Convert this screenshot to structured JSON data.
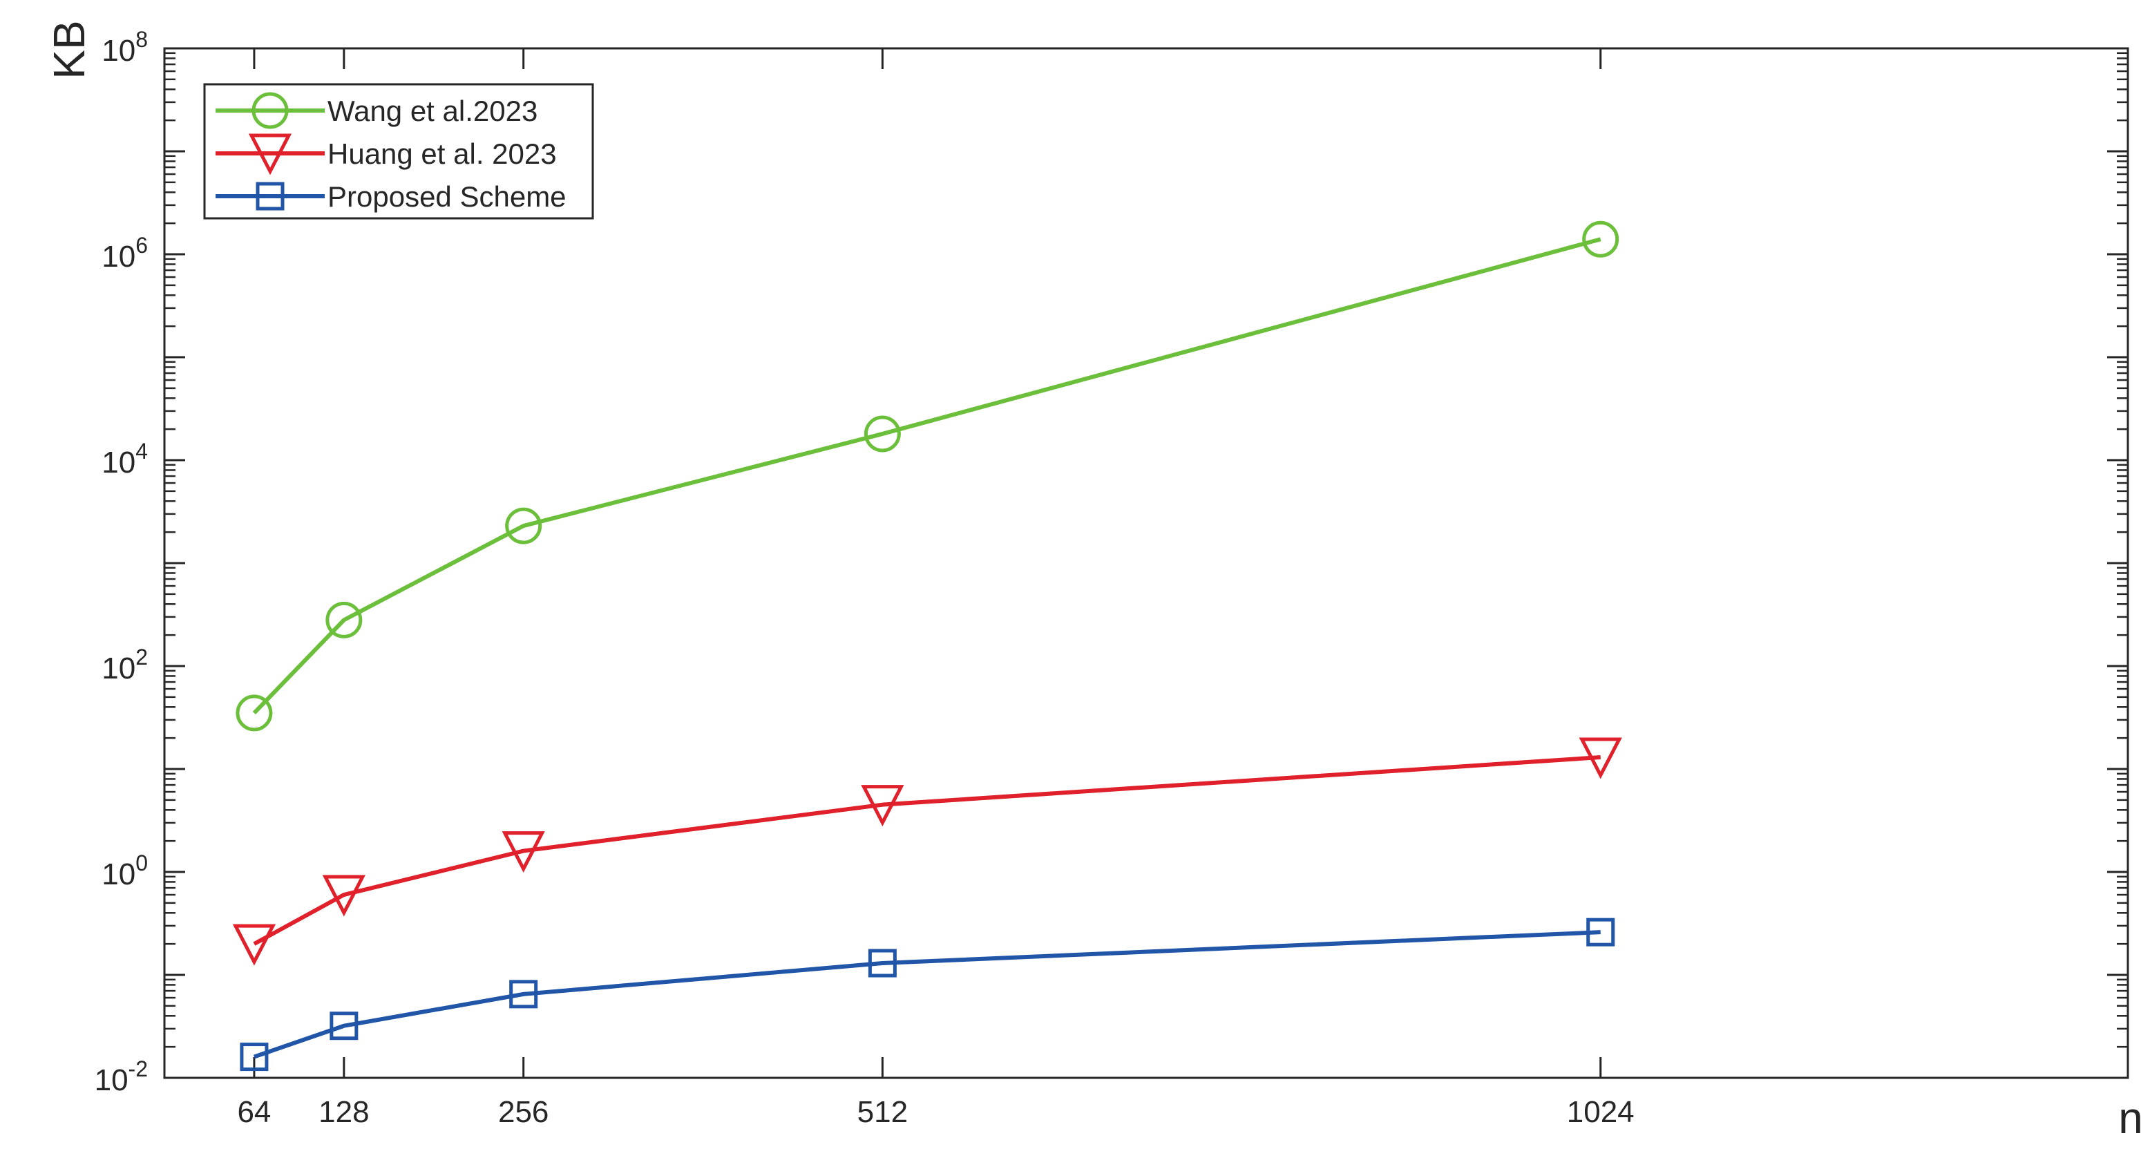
{
  "chart_data": {
    "type": "line",
    "title": "",
    "xlabel": "n",
    "ylabel": "KB",
    "yscale": "log",
    "ylim": [
      0.01,
      100000000
    ],
    "xlim": [
      0,
      1400
    ],
    "x": [
      64,
      128,
      256,
      512,
      1024
    ],
    "x_tick_labels": [
      "64",
      "128",
      "256",
      "512",
      "1024"
    ],
    "y_ticks": [
      {
        "base": "10",
        "exp": "-2"
      },
      {
        "base": "10",
        "exp": "0"
      },
      {
        "base": "10",
        "exp": "2"
      },
      {
        "base": "10",
        "exp": "4"
      },
      {
        "base": "10",
        "exp": "6"
      },
      {
        "base": "10",
        "exp": "8"
      }
    ],
    "grid": false,
    "legend_position": "top-left",
    "series": [
      {
        "name": "Wang et al.2023",
        "color": "#6bbf3a",
        "marker": "circle",
        "values": [
          35,
          280,
          2300,
          18000,
          1400000
        ]
      },
      {
        "name": "Huang et al. 2023",
        "color": "#e0202a",
        "marker": "triangle-down",
        "values": [
          0.2,
          0.6,
          1.6,
          4.5,
          13
        ]
      },
      {
        "name": "Proposed Scheme",
        "color": "#2055a8",
        "marker": "square",
        "values": [
          0.016,
          0.032,
          0.065,
          0.13,
          0.26
        ]
      }
    ]
  }
}
